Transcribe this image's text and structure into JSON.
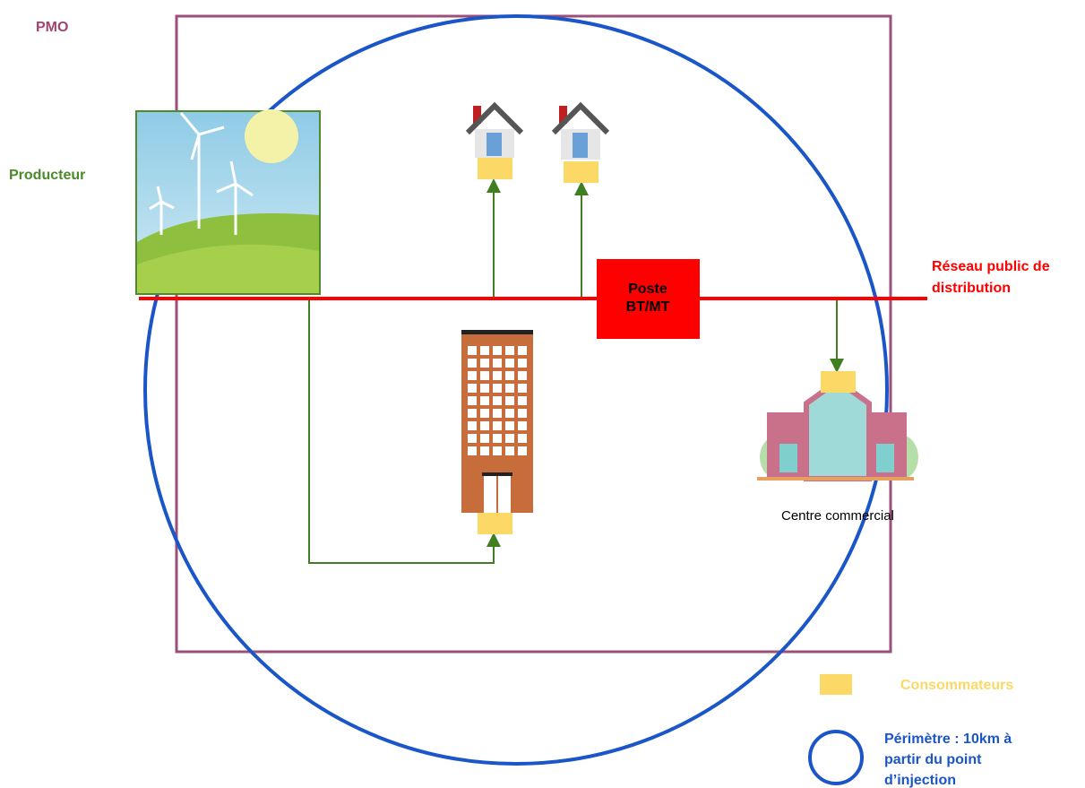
{
  "labels": {
    "pmo": "PMO",
    "producteur": "Producteur",
    "reseau": [
      "Réseau public de",
      "distribution"
    ],
    "poste": [
      "Poste",
      "BT/MT"
    ],
    "centre": "Centre commercial",
    "consommateurs": "Consommateurs",
    "perimetre": [
      "Périmètre : 10km à",
      "partir du point",
      "d’injection"
    ]
  }
}
